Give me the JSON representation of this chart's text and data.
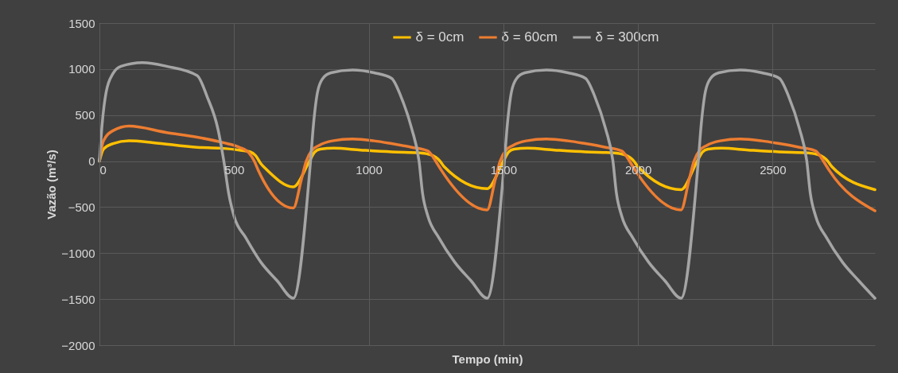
{
  "chart_data": {
    "type": "line",
    "xlabel": "Tempo (min)",
    "ylabel": "Vazão (m³/s)",
    "xlim": [
      0,
      2880
    ],
    "xticks": [
      0,
      500,
      1000,
      1500,
      2000,
      2500
    ],
    "ylim": [
      -2000,
      1500
    ],
    "yticks": [
      -2000,
      -1500,
      -1000,
      -500,
      0,
      500,
      1000,
      1500
    ],
    "grid": true,
    "legend": "top",
    "line_style": "solid",
    "marker": "none",
    "series": [
      {
        "name": "δ = 0cm",
        "color": "#ffc000",
        "x": [
          0,
          15,
          50,
          110,
          200,
          363,
          450,
          520,
          560,
          580,
          600,
          620,
          720,
          780,
          800,
          820,
          870,
          970,
          1085,
          1190,
          1230,
          1250,
          1265,
          1280,
          1440,
          1500,
          1520,
          1540,
          1590,
          1690,
          1805,
          1910,
          1950,
          1970,
          1985,
          2000,
          2160,
          2220,
          2240,
          2260,
          2310,
          2410,
          2525,
          2630,
          2670,
          2690,
          2705,
          2720,
          2880
        ],
        "values": [
          0,
          130,
          190,
          220,
          200,
          150,
          140,
          120,
          100,
          60,
          -30,
          -90,
          -280,
          0,
          100,
          130,
          140,
          120,
          100,
          90,
          70,
          40,
          0,
          -60,
          -300,
          0,
          100,
          130,
          140,
          120,
          100,
          90,
          70,
          40,
          0,
          -60,
          -310,
          0,
          100,
          130,
          140,
          120,
          100,
          90,
          70,
          40,
          0,
          -60,
          -310
        ]
      },
      {
        "name": "δ = 60cm",
        "color": "#ed7d31",
        "x": [
          0,
          15,
          50,
          110,
          250,
          363,
          460,
          520,
          555,
          575,
          590,
          720,
          750,
          768,
          790,
          815,
          865,
          940,
          1020,
          1085,
          1160,
          1220,
          1240,
          1255,
          1270,
          1440,
          1470,
          1488,
          1510,
          1535,
          1585,
          1660,
          1740,
          1805,
          1880,
          1940,
          1960,
          1975,
          1990,
          2160,
          2190,
          2208,
          2230,
          2255,
          2305,
          2380,
          2460,
          2525,
          2600,
          2660,
          2680,
          2695,
          2710,
          2880
        ],
        "values": [
          0,
          220,
          330,
          380,
          310,
          260,
          200,
          150,
          90,
          0,
          -100,
          -510,
          -200,
          0,
          120,
          170,
          220,
          240,
          220,
          190,
          150,
          110,
          40,
          -30,
          -100,
          -530,
          -200,
          0,
          120,
          170,
          220,
          240,
          220,
          190,
          150,
          110,
          40,
          -30,
          -100,
          -530,
          -200,
          0,
          120,
          170,
          220,
          240,
          220,
          190,
          150,
          110,
          40,
          -30,
          -100,
          -540
        ]
      },
      {
        "name": "δ = 300cm",
        "color": "#a5a5a5",
        "x": [
          0,
          10,
          25,
          50,
          80,
          160,
          250,
          363,
          400,
          440,
          462,
          480,
          500,
          543,
          600,
          660,
          720,
          784,
          795,
          810,
          830,
          860,
          940,
          1020,
          1085,
          1120,
          1160,
          1187,
          1200,
          1220,
          1260,
          1320,
          1380,
          1440,
          1504,
          1515,
          1530,
          1550,
          1580,
          1660,
          1740,
          1805,
          1840,
          1880,
          1907,
          1920,
          1940,
          1980,
          2040,
          2100,
          2160,
          2224,
          2235,
          2250,
          2270,
          2300,
          2380,
          2460,
          2525,
          2560,
          2600,
          2627,
          2640,
          2660,
          2700,
          2760,
          2820,
          2880
        ],
        "values": [
          0,
          400,
          750,
          950,
          1030,
          1070,
          1030,
          930,
          700,
          350,
          0,
          -350,
          -600,
          -830,
          -1100,
          -1300,
          -1490,
          0,
          400,
          750,
          900,
          960,
          990,
          960,
          900,
          700,
          350,
          0,
          -350,
          -600,
          -830,
          -1100,
          -1300,
          -1490,
          0,
          400,
          750,
          900,
          960,
          990,
          960,
          900,
          700,
          350,
          0,
          -350,
          -600,
          -830,
          -1100,
          -1300,
          -1490,
          0,
          400,
          750,
          900,
          960,
          990,
          960,
          900,
          700,
          350,
          0,
          -350,
          -600,
          -830,
          -1100,
          -1300,
          -1490
        ]
      }
    ]
  }
}
